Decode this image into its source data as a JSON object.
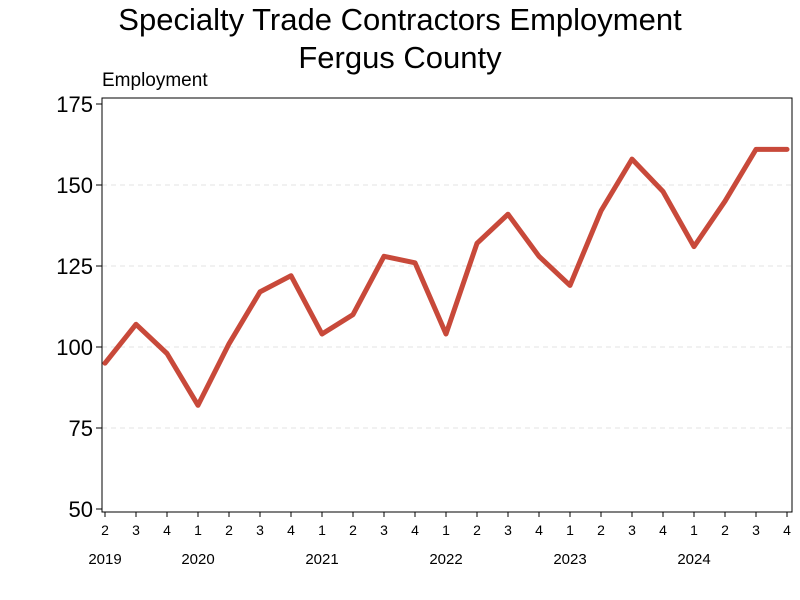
{
  "chart_data": {
    "type": "line",
    "title": [
      "Specialty Trade Contractors Employment",
      "Fergus County"
    ],
    "ylabel": "Employment",
    "xlabel": "",
    "ylim": [
      50,
      175
    ],
    "yticks": [
      50,
      75,
      100,
      125,
      150,
      175
    ],
    "grid": "horizontal dashed",
    "legend": "none",
    "line_color": "#c8493a",
    "x_quarters": [
      "2",
      "3",
      "4",
      "1",
      "2",
      "3",
      "4",
      "1",
      "2",
      "3",
      "4",
      "1",
      "2",
      "3",
      "4",
      "1",
      "2",
      "3",
      "4",
      "1",
      "2",
      "3",
      "4"
    ],
    "x_years": [
      {
        "label": "2019",
        "at_index": 0
      },
      {
        "label": "2020",
        "at_index": 3
      },
      {
        "label": "2021",
        "at_index": 7
      },
      {
        "label": "2022",
        "at_index": 11
      },
      {
        "label": "2023",
        "at_index": 15
      },
      {
        "label": "2024",
        "at_index": 19
      }
    ],
    "series": [
      {
        "values": [
          95,
          107,
          98,
          82,
          101,
          117,
          122,
          104,
          110,
          128,
          126,
          104,
          132,
          141,
          128,
          119,
          142,
          158,
          148,
          131,
          145,
          161,
          161
        ]
      }
    ]
  }
}
